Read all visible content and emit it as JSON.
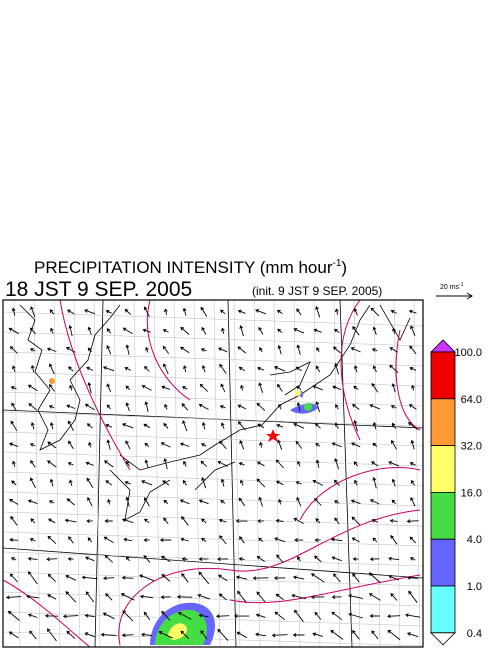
{
  "header": {
    "title": "PRECIPITATION INTENSITY (mm hour",
    "title_sup": "-1",
    "title_end": ")",
    "valid_time": "18 JST 9 SEP. 2005",
    "init_time": "(init. 9 JST 9 SEP. 2005)"
  },
  "wind_reference": {
    "label": "20 ms",
    "label_sup": "-1"
  },
  "colorbar": {
    "labels": [
      "100.0",
      "64.0",
      "32.0",
      "16.0",
      "4.0",
      "1.0",
      "0.4"
    ],
    "colors": [
      "#cc33ff",
      "#ee0000",
      "#ff9933",
      "#ffff66",
      "#44dd44",
      "#6666ff",
      "#66ffff",
      "#ffffff"
    ]
  }
}
